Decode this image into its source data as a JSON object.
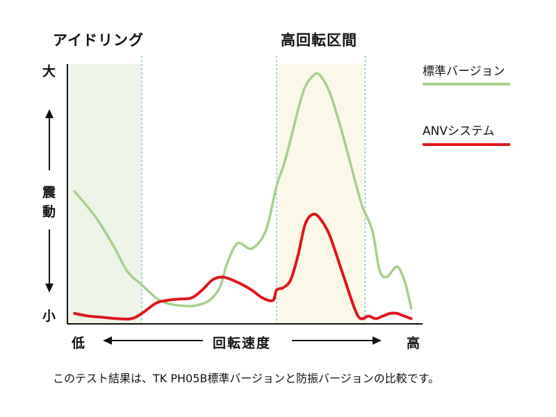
{
  "chart_data": {
    "type": "line",
    "title": "",
    "xlabel": "回転速度",
    "ylabel": "震動",
    "x_axis": {
      "low_label": "低",
      "high_label": "高"
    },
    "y_axis": {
      "high_label": "大",
      "low_label": "小",
      "word_chars": [
        "震",
        "動"
      ]
    },
    "xlim": [
      0,
      100
    ],
    "ylim": [
      0,
      100
    ],
    "grid": false,
    "legend_position": "right",
    "regions": [
      {
        "label": "アイドリング",
        "x_start": 0,
        "x_end": 21,
        "color": "#eef5e8"
      },
      {
        "label": "高回転区間",
        "x_start": 59,
        "x_end": 84,
        "color": "#fbf8ea"
      }
    ],
    "series": [
      {
        "name": "標準バージョン",
        "color": "#a5cf8a",
        "x": [
          2,
          8,
          13,
          17,
          21,
          25,
          28,
          32,
          36,
          40,
          43,
          45,
          48,
          52,
          56,
          59,
          61,
          63,
          65,
          67,
          69,
          71,
          74,
          77,
          80,
          83,
          86,
          88,
          90,
          93,
          95,
          96,
          97
        ],
        "y": [
          51,
          41,
          30,
          20,
          15,
          10,
          8,
          7,
          7,
          9,
          14,
          23,
          31,
          29,
          36,
          53,
          61,
          71,
          82,
          91,
          95,
          96,
          89,
          76,
          61,
          46,
          36,
          21,
          18,
          22,
          17,
          12,
          6
        ]
      },
      {
        "name": "ANVシステム",
        "color": "#e0141a",
        "x": [
          2,
          6,
          10,
          14,
          18,
          21,
          25,
          28,
          31,
          35,
          38,
          41,
          44,
          48,
          52,
          55,
          58,
          59,
          61,
          63,
          65,
          67,
          69,
          71,
          74,
          78,
          82,
          85,
          87,
          89,
          91,
          93,
          95,
          97
        ],
        "y": [
          4,
          3,
          2.5,
          2,
          2,
          4,
          8,
          9,
          9.5,
          10,
          13,
          17,
          18,
          16,
          13,
          10,
          9,
          13,
          14,
          17,
          26,
          38,
          42,
          41,
          34,
          18,
          3,
          3,
          2,
          3,
          4,
          4,
          3,
          2
        ]
      }
    ]
  },
  "legend": {
    "items": [
      {
        "label": "標準バージョン",
        "color": "#a5cf8a"
      },
      {
        "label": "ANVシステム",
        "color": "#e0141a"
      }
    ]
  },
  "caption": "このテスト結果は、TK PH05B標準バージョンと防振バージョンの比較です。"
}
